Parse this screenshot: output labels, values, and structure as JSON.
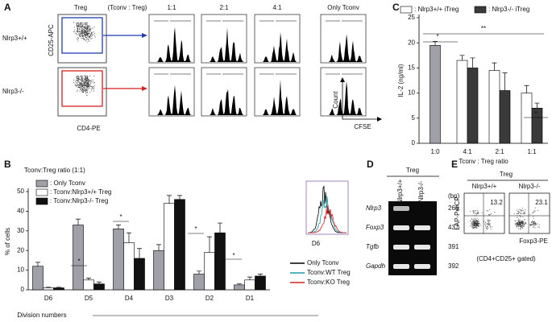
{
  "panel_labels": [
    "A",
    "B",
    "C",
    "D",
    "E"
  ],
  "panel_a": {
    "treg": "Treg",
    "ratio_header": "(Tconv : Treg)",
    "columns": [
      "1:1",
      "2:1",
      "4:1",
      "Only Tconv"
    ],
    "rows": [
      "Nlrp3+/+",
      "Nlrp3-/-"
    ],
    "y_axis": "CD25-APC",
    "x_axis": "CD4-PE",
    "gate_values": [
      95.5,
      93.8
    ],
    "hist_y": "Count",
    "hist_x": "CFSE"
  },
  "chart_data": [
    {
      "type": "bar",
      "title": "Tconv:Treg ratio (1:1)",
      "y_label": "% of cells",
      "x_label": "Division numbers",
      "categories": [
        "D6",
        "D5",
        "D4",
        "D3",
        "D2",
        "D1"
      ],
      "series": [
        {
          "name": ": Only Tconv",
          "color": "#a0a0a8",
          "values": [
            12,
            33,
            31,
            20,
            8,
            2.5
          ],
          "errors": [
            2,
            3,
            2,
            3,
            1.5,
            0.5
          ]
        },
        {
          "name": ": Tconv:Nlrp3+/+ Treg",
          "color": "#ffffff",
          "values": [
            1,
            5,
            24,
            44,
            19,
            5
          ],
          "errors": [
            0.3,
            1,
            5,
            4,
            8,
            1.5
          ]
        },
        {
          "name": ": Tconv:Nlrp3-/- Treg",
          "color": "#111111",
          "values": [
            1,
            3,
            16,
            46,
            29,
            7
          ],
          "errors": [
            0.3,
            1,
            5,
            2,
            5,
            1
          ]
        }
      ],
      "ylim": [
        0,
        50
      ],
      "yticks": [
        0,
        10,
        20,
        30,
        40,
        50
      ],
      "legend": "upper left",
      "annotations": [
        "*",
        "*",
        "*",
        "*"
      ]
    },
    {
      "type": "bar",
      "y_label": "IL-2 (ng/ml)",
      "x_label": "Tconv : Treg ratio",
      "categories": [
        "1:0",
        "4:1",
        "2:1",
        "1:1"
      ],
      "series": [
        {
          "color": "#a0a0a8",
          "values": [
            19.5,
            null,
            null,
            null
          ],
          "errors": [
            0.8,
            null,
            null,
            null
          ]
        },
        {
          "name": ": Nlrp3+/+ iTreg",
          "color": "#ffffff",
          "values": [
            null,
            16.5,
            14.5,
            10
          ],
          "errors": [
            null,
            1,
            1.5,
            1.5
          ]
        },
        {
          "name": ": Nlrp3-/- iTreg",
          "color": "#3a3a3a",
          "values": [
            null,
            15,
            10.5,
            7
          ],
          "errors": [
            null,
            2,
            3.5,
            1
          ]
        }
      ],
      "ylim": [
        0,
        25
      ],
      "yticks": [
        0,
        5,
        10,
        15,
        20,
        25
      ],
      "legend": "top",
      "annotations": [
        "*",
        "**",
        "*"
      ]
    }
  ],
  "inset": {
    "label": "D6",
    "legend": [
      {
        "name": "Only Tconv",
        "color": "#000000"
      },
      {
        "name": "Tconv:WT Treg",
        "color": "#1a9ea8"
      },
      {
        "name": "Tconv:KO Treg",
        "color": "#d42020"
      }
    ]
  },
  "panel_d": {
    "title": "Treg",
    "columns": [
      "Nlrp3+/+",
      "Nlrp3-/-"
    ],
    "unit": "(bp)",
    "genes": [
      {
        "name": "Nlrp3",
        "bp": 266
      },
      {
        "name": "Foxp3",
        "bp": 437
      },
      {
        "name": "Tgfb",
        "bp": 391
      },
      {
        "name": "Gapdh",
        "bp": 392
      }
    ]
  },
  "panel_e": {
    "title": "Treg",
    "columns": [
      "Nlrp3+/+",
      "Nlrp3-/-"
    ],
    "values": [
      13.2,
      23.1
    ],
    "y_axis": "LAP-PerCP",
    "x_axis": "Foxp3-PE",
    "note": "(CD4+CD25+ gated)"
  }
}
